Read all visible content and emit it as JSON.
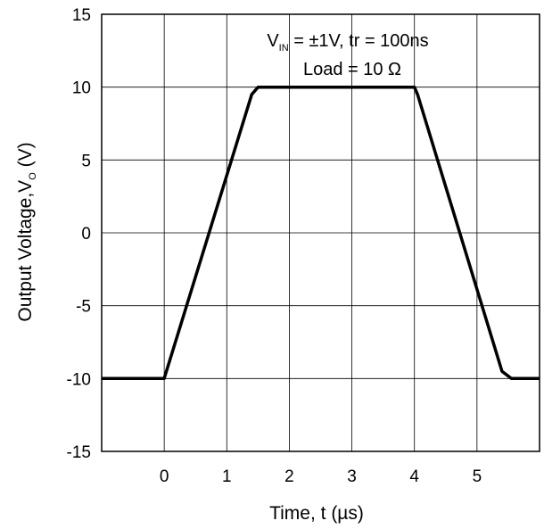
{
  "chart_data": {
    "type": "line",
    "xlabel": "Time, t (µs)",
    "ylabel_main": "Output Voltage,V",
    "ylabel_sub": "O",
    "ylabel_unit": " (V)",
    "xlim": [
      -1,
      6
    ],
    "ylim": [
      -15,
      15
    ],
    "xticks": [
      0,
      1,
      2,
      3,
      4,
      5
    ],
    "xtick_labels": [
      "0",
      "1",
      "2",
      "3",
      "4",
      "5"
    ],
    "yticks": [
      15,
      10,
      5,
      0,
      -5,
      -10,
      -15
    ],
    "ytick_labels": [
      "15",
      "10",
      "5",
      "0",
      "-5",
      "-10",
      "-15"
    ],
    "grid": true,
    "annotations": {
      "line1_v": "V",
      "line1_sub": "IN",
      "line1_rest": " = ±1V, tr = 100ns",
      "line2": "Load = 10 Ω"
    },
    "series": [
      {
        "color": "#000000",
        "x": [
          -1,
          0,
          1.4,
          1.5,
          4.0,
          4.05,
          5.4,
          5.55,
          6
        ],
        "y": [
          -10,
          -10,
          9.5,
          10,
          10,
          9.5,
          -9.5,
          -10,
          -10
        ]
      }
    ]
  }
}
